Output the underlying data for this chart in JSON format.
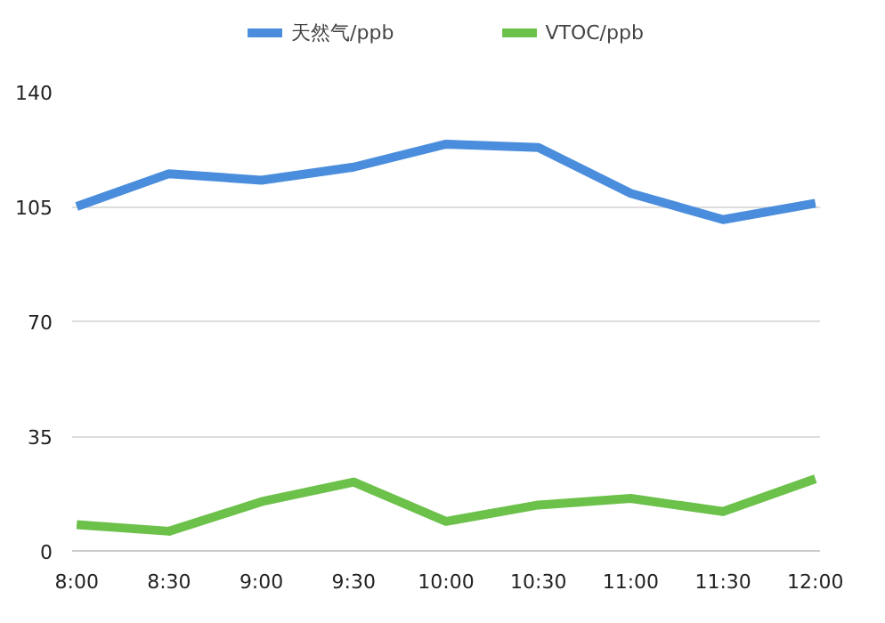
{
  "chart_data": {
    "type": "line",
    "categories": [
      "8:00",
      "8:30",
      "9:00",
      "9:30",
      "10:00",
      "10:30",
      "11:00",
      "11:30",
      "12:00"
    ],
    "series": [
      {
        "name": "天然气/ppb",
        "color": "#4a8ddc",
        "values": [
          105,
          115,
          113,
          117,
          124,
          123,
          109,
          101,
          106
        ]
      },
      {
        "name": "VTOC/ppb",
        "color": "#6cc14a",
        "values": [
          8,
          6,
          15,
          21,
          9,
          14,
          16,
          12,
          22
        ]
      }
    ],
    "ylim": [
      0,
      140
    ],
    "yticks": [
      0,
      35,
      70,
      105,
      140
    ],
    "grid": "y",
    "legend": "top",
    "marker": "none",
    "line_style": "solid"
  }
}
